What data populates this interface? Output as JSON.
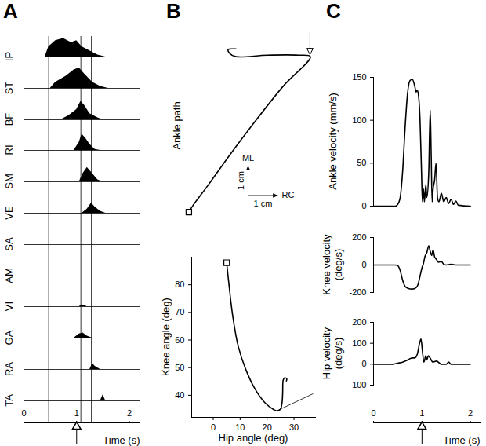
{
  "chart_data": [
    {
      "panel": "A",
      "type": "area",
      "xlabel": "Time (s)",
      "xlim": [
        0,
        2.2
      ],
      "xticks": [
        0,
        1,
        2
      ],
      "tick_labels": "x",
      "color": "black",
      "markers_x": [
        0.47,
        1.08,
        1.28
      ],
      "arrow_x": 1,
      "series": [
        {
          "name": "IP",
          "x": [
            0.4,
            0.47,
            0.6,
            0.75,
            0.9,
            1.0,
            1.1,
            1.25,
            1.4,
            1.55
          ],
          "values": [
            0,
            0.5,
            0.8,
            0.9,
            0.7,
            0.8,
            0.5,
            0.3,
            0.1,
            0
          ]
        },
        {
          "name": "ST",
          "x": [
            0.5,
            0.6,
            0.8,
            0.95,
            1.05,
            1.15,
            1.3,
            1.45,
            1.6
          ],
          "values": [
            0,
            0.3,
            0.6,
            0.9,
            1.0,
            0.7,
            0.3,
            0.1,
            0
          ]
        },
        {
          "name": "BF",
          "x": [
            0.7,
            0.85,
            1.0,
            1.08,
            1.15,
            1.25,
            1.4,
            1.5
          ],
          "values": [
            0,
            0.2,
            0.5,
            0.9,
            0.7,
            0.3,
            0.1,
            0
          ]
        },
        {
          "name": "RI",
          "x": [
            0.95,
            1.05,
            1.1,
            1.17,
            1.25,
            1.35,
            1.45
          ],
          "values": [
            0,
            0.4,
            0.8,
            0.6,
            0.3,
            0.05,
            0
          ]
        },
        {
          "name": "SM",
          "x": [
            1.05,
            1.12,
            1.2,
            1.3,
            1.4,
            1.5
          ],
          "values": [
            0,
            0.4,
            0.7,
            0.4,
            0.1,
            0
          ]
        },
        {
          "name": "VE",
          "x": [
            1.1,
            1.2,
            1.28,
            1.35,
            1.45,
            1.55
          ],
          "values": [
            0,
            0.2,
            0.5,
            0.3,
            0.1,
            0
          ]
        },
        {
          "name": "SA",
          "x": [],
          "values": []
        },
        {
          "name": "AM",
          "x": [],
          "values": []
        },
        {
          "name": "VI",
          "x": [
            1.05,
            1.1,
            1.15,
            1.2
          ],
          "values": [
            0,
            0.1,
            0.05,
            0
          ]
        },
        {
          "name": "GA",
          "x": [
            0.95,
            1.05,
            1.12,
            1.2,
            1.3
          ],
          "values": [
            0,
            0.2,
            0.25,
            0.1,
            0
          ]
        },
        {
          "name": "RA",
          "x": [
            1.25,
            1.3,
            1.35,
            1.45
          ],
          "values": [
            0,
            0.3,
            0.15,
            0
          ]
        },
        {
          "name": "TA",
          "x": [
            1.45,
            1.5,
            1.55
          ],
          "values": [
            0,
            0.3,
            0
          ]
        }
      ]
    },
    {
      "panel": "B",
      "type": "line",
      "ylabel": "Ankle path",
      "xlim": [
        -0.3,
        4.4
      ],
      "ylim": [
        -0.3,
        5.7
      ],
      "tick_labels": false,
      "color": "black",
      "marker": "square",
      "x": [
        0,
        0.13,
        0.66,
        1.32,
        2.11,
        3.16,
        4.08,
        3.68,
        2.63,
        1.58,
        1.37,
        1.32,
        1.47,
        1.58
      ],
      "values": [
        0,
        0.21,
        0.92,
        1.84,
        2.89,
        4.21,
        5.21,
        5.26,
        5.26,
        5.21,
        5.32,
        5.45,
        5.47,
        5.47
      ],
      "arrow_at": [
        4.08,
        5.21
      ],
      "direction_labels": {
        "x": "RC",
        "y": "ML"
      },
      "scale_bar": {
        "length": 1,
        "label": "1 cm"
      }
    },
    {
      "type": "line",
      "xlabel": "Hip angle (deg)",
      "ylabel": "Knee angle (deg)",
      "xlim": [
        -8,
        38
      ],
      "ylim": [
        32,
        90
      ],
      "xticks": [
        0,
        10,
        20,
        30
      ],
      "yticks": [
        40,
        50,
        60,
        70,
        80
      ],
      "color": "black",
      "series": [
        {
          "marker": "square",
          "x": [
            5,
            5.8,
            7.2,
            9.3,
            12.2,
            15.7,
            19.4,
            22.3,
            23.8,
            25.0,
            25.6,
            25.8,
            26.0,
            26.5,
            27.3,
            27.2
          ],
          "values": [
            88,
            80.6,
            69.1,
            57.7,
            49.1,
            42.0,
            37.1,
            34.9,
            34.3,
            35.0,
            37.5,
            41,
            45.5,
            46.3,
            46.0,
            45.2
          ]
        },
        {
          "x": [
            23.5,
            37
          ],
          "values": [
            34.3,
            40.5
          ]
        }
      ]
    },
    {
      "panel": "C",
      "type": "line",
      "ylabel": "Ankle velocity (mm/s)",
      "xlim": [
        0,
        2.2
      ],
      "ylim": [
        0,
        150
      ],
      "yticks": [
        0,
        50,
        100,
        150
      ],
      "color": "black",
      "x": [
        0,
        0.45,
        0.5,
        0.55,
        0.6,
        0.65,
        0.7,
        0.75,
        0.8,
        0.85,
        0.88,
        0.9,
        0.93,
        0.96,
        0.99,
        1.01,
        1.03,
        1.05,
        1.08,
        1.1,
        1.14,
        1.17,
        1.19,
        1.21,
        1.23,
        1.26,
        1.29,
        1.32,
        1.35,
        1.4,
        1.45,
        1.5,
        1.55,
        1.6,
        1.65,
        1.7,
        1.75,
        2.0
      ],
      "values": [
        0,
        0,
        2,
        10,
        40,
        90,
        130,
        146,
        148,
        140,
        133,
        135,
        128,
        100,
        40,
        5,
        20,
        5,
        25,
        10,
        40,
        112,
        60,
        5,
        20,
        30,
        50,
        10,
        5,
        15,
        5,
        10,
        3,
        8,
        2,
        6,
        1,
        0
      ]
    },
    {
      "type": "line",
      "ylabel": "Knee velocity (deg/s)",
      "xlim": [
        0,
        2.2
      ],
      "ylim": [
        -200,
        200
      ],
      "yticks": [
        -200,
        0,
        200
      ],
      "color": "black",
      "x": [
        0,
        0.45,
        0.5,
        0.55,
        0.6,
        0.65,
        0.7,
        0.8,
        0.88,
        0.92,
        0.96,
        1.0,
        1.03,
        1.06,
        1.1,
        1.14,
        1.17,
        1.2,
        1.23,
        1.26,
        1.3,
        1.34,
        1.4,
        1.45,
        1.5,
        1.6,
        1.7,
        2.0
      ],
      "values": [
        0,
        0,
        -5,
        -40,
        -110,
        -155,
        -168,
        -175,
        -165,
        -140,
        -80,
        -20,
        10,
        60,
        90,
        140,
        100,
        70,
        110,
        60,
        40,
        20,
        25,
        5,
        0,
        5,
        0,
        0
      ]
    },
    {
      "type": "line",
      "ylabel": "Hip velocity (deg/s)",
      "xlabel": "Time (s)",
      "xlim": [
        0,
        2.2
      ],
      "ylim": [
        -100,
        200
      ],
      "yticks": [
        -100,
        0,
        100,
        200
      ],
      "xticks": [
        0,
        1,
        2
      ],
      "arrow_x": 1,
      "color": "black",
      "x": [
        0,
        0.4,
        0.5,
        0.6,
        0.7,
        0.8,
        0.85,
        0.9,
        0.95,
        0.98,
        1.01,
        1.04,
        1.08,
        1.1,
        1.13,
        1.18,
        1.22,
        1.3,
        1.4,
        1.5,
        1.55,
        1.6,
        2.0
      ],
      "values": [
        0,
        0,
        5,
        10,
        20,
        30,
        30,
        45,
        100,
        120,
        60,
        10,
        40,
        20,
        40,
        25,
        10,
        15,
        0,
        0,
        10,
        0,
        0
      ]
    }
  ]
}
